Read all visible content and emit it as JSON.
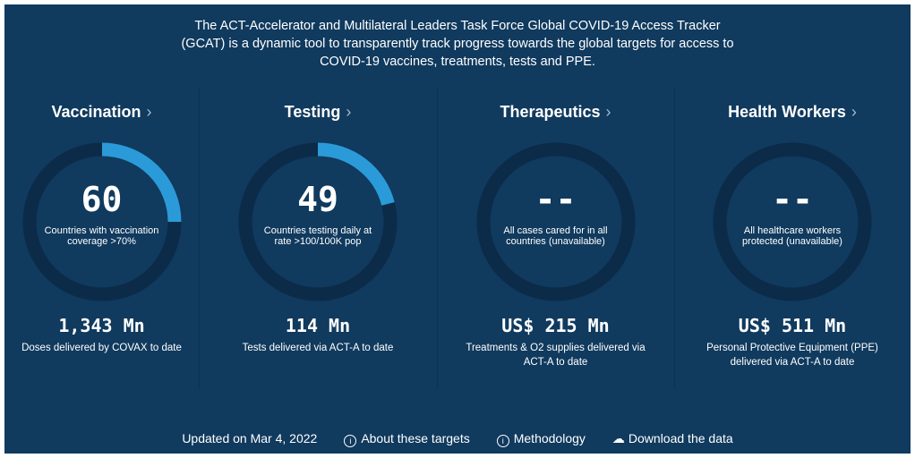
{
  "intro": "The ACT-Accelerator and Multilateral Leaders Task Force Global COVID-19 Access Tracker (GCAT) is a dynamic tool to transparently track progress towards the global targets for access to COVID-19 vaccines, treatments, tests and PPE.",
  "colors": {
    "background": "#103a5e",
    "ring_track": "#0b2b48",
    "ring_progress": "#2b9ad8"
  },
  "cards": [
    {
      "title": "Vaccination",
      "value": "60",
      "ring_label": "Countries with vaccination coverage >70%",
      "progress": 0.25,
      "amount": "1,343 Mn",
      "amount_label": "Doses delivered by COVAX to date"
    },
    {
      "title": "Testing",
      "value": "49",
      "ring_label": "Countries testing daily at rate >100/100K pop",
      "progress": 0.21,
      "amount": "114 Mn",
      "amount_label": "Tests delivered via ACT-A to date"
    },
    {
      "title": "Therapeutics",
      "value": "--",
      "ring_label": "All cases cared for in all countries (unavailable)",
      "progress": 0,
      "amount": "US$ 215 Mn",
      "amount_label": "Treatments & O2 supplies delivered via ACT-A to date"
    },
    {
      "title": "Health Workers",
      "value": "--",
      "ring_label": "All healthcare workers protected (unavailable)",
      "progress": 0,
      "amount": "US$ 511 Mn",
      "amount_label": "Personal Protective Equipment (PPE) delivered via ACT-A to date"
    }
  ],
  "footer": {
    "updated": "Updated on Mar 4, 2022",
    "about": "About these targets",
    "methodology": "Methodology",
    "download": "Download the data",
    "chevron": "›"
  }
}
